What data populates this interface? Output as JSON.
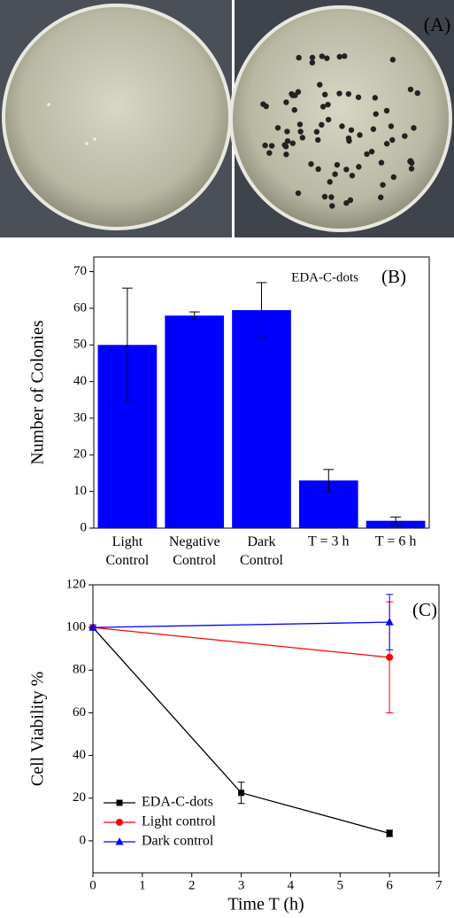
{
  "photo": {
    "label": "(A)"
  },
  "chart_data": [
    {
      "type": "bar",
      "annotation": "EDA-C-dots",
      "panel_label": "(B)",
      "y_label": "Number of Colonies",
      "categories": [
        "Light Control",
        "Negative Control",
        "Dark Control",
        "T = 3 h",
        "T = 6 h"
      ],
      "values": [
        50,
        58,
        59.5,
        13,
        2
      ],
      "errors": [
        15.5,
        1,
        7.5,
        3,
        1
      ],
      "color": "#0000ff",
      "ylim": [
        0,
        74
      ],
      "yticks": [
        0,
        10,
        20,
        30,
        40,
        50,
        60,
        70
      ]
    },
    {
      "type": "line",
      "panel_label": "(C)",
      "x_label": "Time T (h)",
      "y_label": "Cell Viability %",
      "legend": "lower-left",
      "xlim": [
        0,
        7
      ],
      "xticks": [
        0,
        1,
        2,
        3,
        4,
        5,
        6,
        7
      ],
      "ylim": [
        -15,
        120
      ],
      "yticks": [
        0,
        20,
        40,
        60,
        80,
        100,
        120
      ],
      "series": [
        {
          "name": "EDA-C-dots",
          "color": "#000000",
          "marker": "square",
          "x": [
            0,
            3,
            6
          ],
          "values": [
            100,
            22.5,
            3.5
          ],
          "errors": [
            0,
            5,
            1.5
          ]
        },
        {
          "name": "Light control",
          "color": "#ff0000",
          "marker": "circle",
          "x": [
            0,
            6
          ],
          "values": [
            100,
            86
          ],
          "errors": [
            0,
            26
          ]
        },
        {
          "name": "Dark control",
          "color": "#0000ff",
          "marker": "triangle",
          "x": [
            0,
            6
          ],
          "values": [
            100,
            102.5
          ],
          "errors": [
            0,
            13
          ]
        }
      ]
    }
  ]
}
